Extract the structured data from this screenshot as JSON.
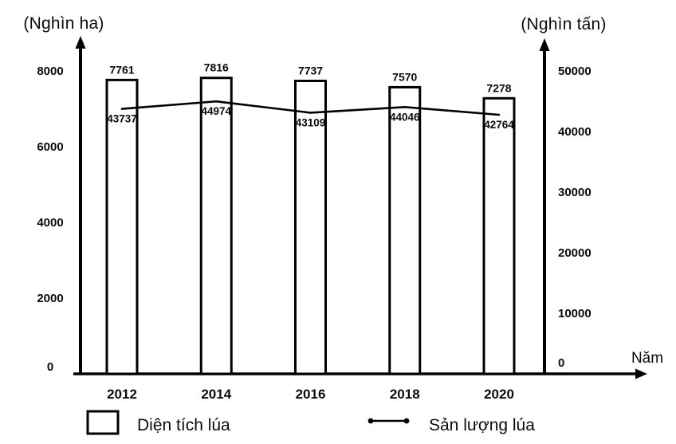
{
  "chart_data": {
    "type": "bar+line",
    "title": "",
    "left_axis_unit": "(Nghìn ha)",
    "right_axis_unit": "(Nghìn tấn)",
    "xlabel": "Năm",
    "categories": [
      "2012",
      "2014",
      "2016",
      "2018",
      "2020"
    ],
    "series": [
      {
        "name": "Diện tích lúa",
        "type": "bar",
        "axis": "left",
        "values": [
          7761,
          7816,
          7737,
          7570,
          7278
        ]
      },
      {
        "name": "Sản lượng lúa",
        "type": "line",
        "axis": "right",
        "values": [
          43737,
          44974,
          43109,
          44046,
          42764
        ]
      }
    ],
    "left_axis_ticks": [
      0,
      2000,
      4000,
      6000,
      8000
    ],
    "right_axis_ticks": [
      0,
      10000,
      20000,
      30000,
      40000,
      50000
    ],
    "left_axis_max": 8000,
    "right_axis_max": 50000,
    "grid": false,
    "legend_position": "bottom",
    "legend": [
      {
        "label": "Diện tích lúa",
        "swatch": "bar"
      },
      {
        "label": "Sản lượng lúa",
        "swatch": "line"
      }
    ],
    "colors": {
      "ink": "#000000",
      "bar_fill": "#ffffff",
      "background": "#ffffff"
    }
  }
}
